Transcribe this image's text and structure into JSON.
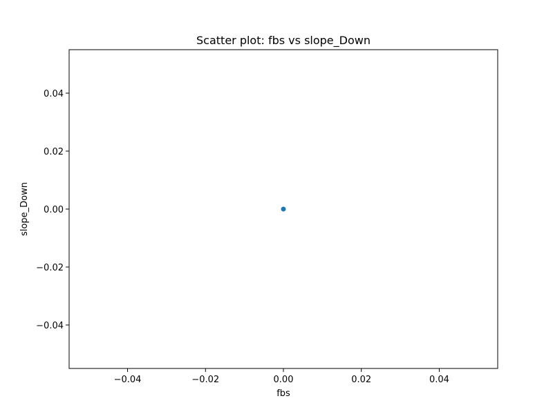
{
  "chart_data": {
    "type": "scatter",
    "title": "Scatter plot: fbs vs slope_Down",
    "xlabel": "fbs",
    "ylabel": "slope_Down",
    "xlim": [
      -0.055,
      0.055
    ],
    "ylim": [
      -0.055,
      0.055
    ],
    "x_ticks": [
      -0.04,
      -0.02,
      0.0,
      0.02,
      0.04
    ],
    "x_tick_labels": [
      "−0.04",
      "−0.02",
      "0.00",
      "0.02",
      "0.04"
    ],
    "y_ticks": [
      -0.04,
      -0.02,
      0.0,
      0.02,
      0.04
    ],
    "y_tick_labels": [
      "−0.04",
      "−0.02",
      "0.00",
      "0.02",
      "0.04"
    ],
    "grid": false,
    "marker_color": "#1f77b4",
    "points": [
      {
        "x": 0.0,
        "y": 0.0
      }
    ]
  }
}
